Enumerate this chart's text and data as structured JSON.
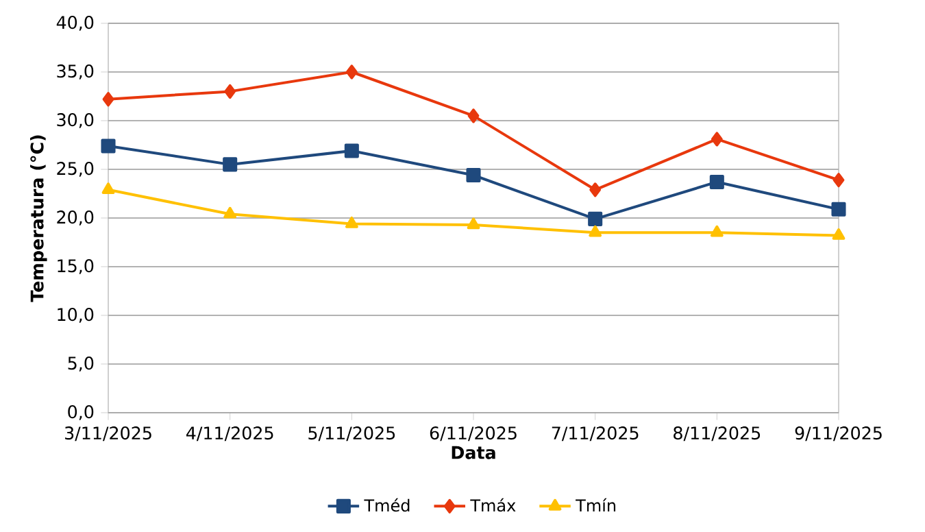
{
  "chart_data": {
    "type": "line",
    "xlabel": "Data",
    "ylabel": "Temperatura (°C)",
    "categories": [
      "3/11/2025",
      "4/11/2025",
      "5/11/2025",
      "6/11/2025",
      "7/11/2025",
      "8/11/2025",
      "9/11/2025"
    ],
    "series": [
      {
        "name": "Tméd",
        "color": "#1f497d",
        "marker": "square",
        "values": [
          27.4,
          25.5,
          26.9,
          24.4,
          19.9,
          23.7,
          20.9
        ]
      },
      {
        "name": "Tmáx",
        "color": "#e8380d",
        "marker": "diamond",
        "values": [
          32.2,
          33.0,
          35.0,
          30.5,
          22.9,
          28.1,
          23.9
        ]
      },
      {
        "name": "Tmín",
        "color": "#ffc000",
        "marker": "triangle",
        "values": [
          22.9,
          20.4,
          19.4,
          19.3,
          18.5,
          18.5,
          18.2
        ]
      }
    ],
    "ylim": [
      0,
      40
    ],
    "yticks": [
      {
        "value": 0,
        "label": "0,0"
      },
      {
        "value": 5,
        "label": "5,0"
      },
      {
        "value": 10,
        "label": "10,0"
      },
      {
        "value": 15,
        "label": "15,0"
      },
      {
        "value": 20,
        "label": "20,0"
      },
      {
        "value": 25,
        "label": "25,0"
      },
      {
        "value": 30,
        "label": "30,0"
      },
      {
        "value": 35,
        "label": "35,0"
      },
      {
        "value": 40,
        "label": "40,0"
      }
    ],
    "grid": "y",
    "legend": "bottom",
    "line_style": "solid"
  }
}
